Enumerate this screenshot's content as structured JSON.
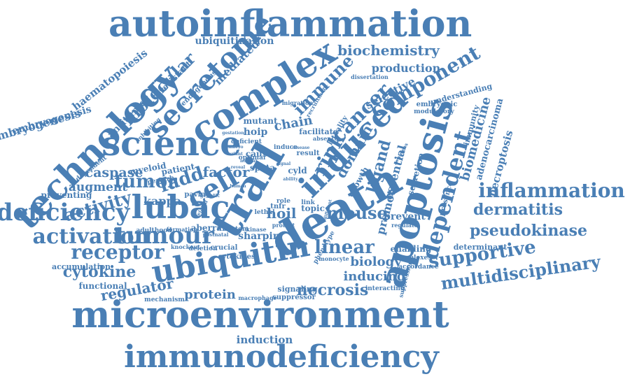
{
  "word_color": "#4a7fb5",
  "words": [
    {
      "text": "autoinflammation"
    },
    {
      "text": "ubiquitination"
    },
    {
      "text": "technology"
    },
    {
      "text": "haematopoiesis"
    },
    {
      "text": "embryogenesis"
    },
    {
      "text": "antitumor"
    },
    {
      "text": "molecular"
    },
    {
      "text": "resistant"
    },
    {
      "text": "endogenous"
    },
    {
      "text": "secretome"
    },
    {
      "text": "mediated"
    },
    {
      "text": "complex"
    },
    {
      "text": "biochemistry"
    },
    {
      "text": "production"
    },
    {
      "text": "component"
    },
    {
      "text": "dissertation"
    },
    {
      "text": "selective"
    },
    {
      "text": "immune"
    },
    {
      "text": "cancer"
    },
    {
      "text": "induced"
    },
    {
      "text": "apoptosis"
    },
    {
      "text": "science"
    },
    {
      "text": "embryogenesis"
    },
    {
      "text": "independent"
    },
    {
      "text": "caspase"
    },
    {
      "text": "augment"
    },
    {
      "text": "tumor"
    },
    {
      "text": "fadd"
    },
    {
      "text": "factor"
    },
    {
      "text": "cell"
    },
    {
      "text": "deficiency"
    },
    {
      "text": "activity"
    },
    {
      "text": "lubac"
    },
    {
      "text": "kappa"
    },
    {
      "text": "trail"
    },
    {
      "text": "death"
    },
    {
      "text": "ripk"
    },
    {
      "text": "domain"
    },
    {
      "text": "ligand"
    },
    {
      "text": "essential"
    },
    {
      "text": "secretion"
    },
    {
      "text": "dependent"
    },
    {
      "text": "biomedicine"
    },
    {
      "text": "adenocarcinoma"
    },
    {
      "text": "necroptosis"
    },
    {
      "text": "immunity"
    },
    {
      "text": "inflammation"
    },
    {
      "text": "dermatitis"
    },
    {
      "text": "pseudokinase"
    },
    {
      "text": "activation"
    },
    {
      "text": "tumour"
    },
    {
      "text": "receptor"
    },
    {
      "text": "mouse"
    },
    {
      "text": "linear"
    },
    {
      "text": "supportive"
    },
    {
      "text": "multidisciplinary"
    },
    {
      "text": "cytokine"
    },
    {
      "text": "ubiquitin"
    },
    {
      "text": "biology"
    },
    {
      "text": "inducing"
    },
    {
      "text": "necrosis"
    },
    {
      "text": "regulator"
    },
    {
      "text": "protein"
    },
    {
      "text": "microenvironment"
    },
    {
      "text": "induction"
    },
    {
      "text": "immunodeficiency"
    },
    {
      "text": "mutant"
    },
    {
      "text": "hoip"
    },
    {
      "text": "chain"
    },
    {
      "text": "hoil"
    },
    {
      "text": "sharpin"
    },
    {
      "text": "spata"
    },
    {
      "text": "cyld"
    },
    {
      "text": "topic"
    },
    {
      "text": "growth"
    },
    {
      "text": "promote"
    },
    {
      "text": "prevent"
    },
    {
      "text": "regulate"
    },
    {
      "text": "accumulation"
    },
    {
      "text": "functional"
    },
    {
      "text": "mechanism"
    },
    {
      "text": "macrophage"
    },
    {
      "text": "signaling"
    },
    {
      "text": "suppressor"
    },
    {
      "text": "cytokines"
    },
    {
      "text": "knockout"
    },
    {
      "text": "deletion"
    },
    {
      "text": "crucial"
    },
    {
      "text": "myeloid"
    },
    {
      "text": "patient"
    },
    {
      "text": "perturb"
    },
    {
      "text": "preventing"
    },
    {
      "text": "paving"
    },
    {
      "text": "lethal"
    },
    {
      "text": "aberrant"
    },
    {
      "text": "adulthood"
    },
    {
      "text": "formation"
    },
    {
      "text": "system"
    },
    {
      "text": "monocyte"
    },
    {
      "text": "phenotype"
    },
    {
      "text": "enabling"
    },
    {
      "text": "complexes"
    },
    {
      "text": "accordance"
    },
    {
      "text": "interacting"
    },
    {
      "text": "suppression"
    },
    {
      "text": "determinant"
    },
    {
      "text": "presence"
    },
    {
      "text": "modulatory"
    },
    {
      "text": "embryonic"
    },
    {
      "text": "understanding"
    },
    {
      "text": "lethality"
    },
    {
      "text": "recruitment"
    },
    {
      "text": "migration"
    },
    {
      "text": "facilitate"
    },
    {
      "text": "absence"
    },
    {
      "text": "deficient"
    },
    {
      "text": "optimal"
    },
    {
      "text": "cause"
    },
    {
      "text": "induce"
    },
    {
      "text": "result"
    },
    {
      "text": "gestation"
    },
    {
      "text": "embryo"
    },
    {
      "text": "variant"
    },
    {
      "text": "disease"
    },
    {
      "text": "whereas"
    },
    {
      "text": "kinase"
    },
    {
      "text": "role"
    },
    {
      "text": "tnfr"
    },
    {
      "text": "link"
    },
    {
      "text": "protect"
    },
    {
      "text": "different"
    },
    {
      "text": "related"
    },
    {
      "text": "genetic"
    },
    {
      "text": "postnatal"
    },
    {
      "text": "reveal"
    },
    {
      "text": "human"
    },
    {
      "text": "normal"
    },
    {
      "text": "inhibiting"
    },
    {
      "text": "ability"
    },
    {
      "text": "signal"
    }
  ]
}
